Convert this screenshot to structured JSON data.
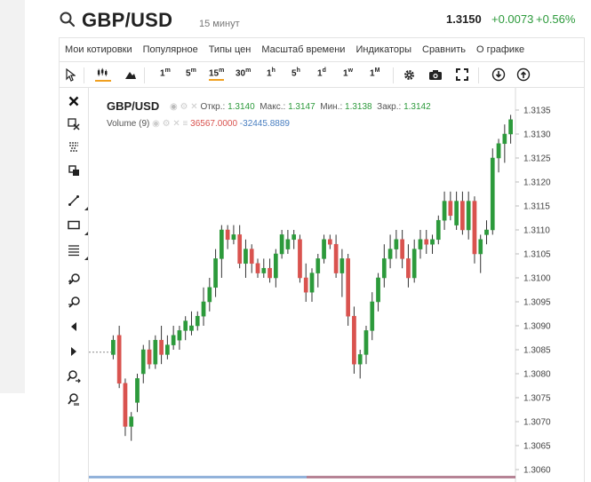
{
  "header": {
    "pair": "GBP/USD",
    "timeframe": "15 минут",
    "price": "1.3150",
    "change": "+0.0073",
    "change_pct": "+0.56%"
  },
  "menu": {
    "items": [
      "Мои котировки",
      "Популярное",
      "Типы цен",
      "Масштаб времени",
      "Индикаторы",
      "Сравнить",
      "О графике"
    ]
  },
  "toolbar": {
    "intervals": [
      {
        "num": "1",
        "unit": "m"
      },
      {
        "num": "5",
        "unit": "m"
      },
      {
        "num": "15",
        "unit": "m",
        "active": true
      },
      {
        "num": "30",
        "unit": "m"
      },
      {
        "num": "1",
        "unit": "h"
      },
      {
        "num": "5",
        "unit": "h"
      },
      {
        "num": "1",
        "unit": "d"
      },
      {
        "num": "1",
        "unit": "w"
      },
      {
        "num": "1",
        "unit": "M"
      }
    ],
    "icons": [
      "cursor-icon",
      "candlestick-chart-icon",
      "mountain-chart-icon",
      "gear-icon",
      "camera-icon",
      "fullscreen-icon",
      "download-icon",
      "upload-icon"
    ]
  },
  "sidebar": {
    "icons": [
      "close-icon",
      "remove-drawings-icon",
      "magnet-icon",
      "clone-icon",
      "trend-line-icon",
      "rectangle-icon",
      "fibonacci-icon",
      "zoom-in-icon",
      "zoom-out-icon",
      "scroll-left-icon",
      "scroll-right-icon",
      "zoom-fit-icon",
      "zoom-reset-icon"
    ]
  },
  "legend": {
    "pair": "GBP/USD",
    "open_label": "Откр.:",
    "open": "1.3140",
    "high_label": "Макс.:",
    "high": "1.3147",
    "low_label": "Мин.:",
    "low": "1.3138",
    "close_label": "Закр.:",
    "close": "1.3142",
    "volume_label": "Volume (9)",
    "volume_up": "36567.0000",
    "volume_down": "-32445.8889"
  },
  "colors": {
    "up": "#2c9a3b",
    "down": "#d9534f",
    "price_badge": "#2c9a3b",
    "volume": "#4a7fc1"
  },
  "chart_data": {
    "type": "candlestick",
    "y_ticks": [
      "1.3135",
      "1.3130",
      "1.3125",
      "1.3120",
      "1.3115",
      "1.3110",
      "1.3105",
      "1.3100",
      "1.3095",
      "1.3090",
      "1.3085",
      "1.3080",
      "1.3075",
      "1.3070",
      "1.3065",
      "1.3060"
    ],
    "ylim": [
      1.3058,
      1.3138
    ],
    "last_price": "1.3150",
    "candles": [
      [
        1.3084,
        1.3088,
        1.3083,
        1.3087
      ],
      [
        1.3088,
        1.309,
        1.3077,
        1.3078
      ],
      [
        1.3078,
        1.3079,
        1.3067,
        1.3069
      ],
      [
        1.3069,
        1.3072,
        1.3066,
        1.3071
      ],
      [
        1.3074,
        1.308,
        1.3072,
        1.3079
      ],
      [
        1.308,
        1.3086,
        1.3078,
        1.3085
      ],
      [
        1.3085,
        1.3087,
        1.3081,
        1.3082
      ],
      [
        1.3082,
        1.3088,
        1.3081,
        1.3087
      ],
      [
        1.3087,
        1.309,
        1.3082,
        1.3084
      ],
      [
        1.3084,
        1.3088,
        1.3083,
        1.3086
      ],
      [
        1.3086,
        1.309,
        1.3085,
        1.3088
      ],
      [
        1.3087,
        1.309,
        1.3085,
        1.3089
      ],
      [
        1.3089,
        1.3092,
        1.3087,
        1.3091
      ],
      [
        1.3089,
        1.3093,
        1.3088,
        1.309
      ],
      [
        1.309,
        1.3093,
        1.3089,
        1.3092
      ],
      [
        1.3092,
        1.3098,
        1.309,
        1.3095
      ],
      [
        1.3095,
        1.31,
        1.3093,
        1.3098
      ],
      [
        1.3098,
        1.3106,
        1.3096,
        1.3104
      ],
      [
        1.3104,
        1.3111,
        1.31,
        1.311
      ],
      [
        1.311,
        1.3111,
        1.3106,
        1.3108
      ],
      [
        1.3108,
        1.3111,
        1.3107,
        1.3109
      ],
      [
        1.3109,
        1.3111,
        1.3102,
        1.3103
      ],
      [
        1.3103,
        1.3108,
        1.31,
        1.3106
      ],
      [
        1.3106,
        1.3107,
        1.3101,
        1.3103
      ],
      [
        1.3103,
        1.3104,
        1.31,
        1.3101
      ],
      [
        1.3101,
        1.3104,
        1.31,
        1.3102
      ],
      [
        1.3102,
        1.3104,
        1.3099,
        1.31
      ],
      [
        1.31,
        1.3106,
        1.3098,
        1.3105
      ],
      [
        1.3105,
        1.311,
        1.3104,
        1.3109
      ],
      [
        1.3106,
        1.311,
        1.3105,
        1.3108
      ],
      [
        1.3108,
        1.311,
        1.3106,
        1.3109
      ],
      [
        1.3108,
        1.3109,
        1.3099,
        1.31
      ],
      [
        1.31,
        1.3103,
        1.3095,
        1.3097
      ],
      [
        1.3097,
        1.3102,
        1.3095,
        1.3101
      ],
      [
        1.3101,
        1.3105,
        1.3098,
        1.3104
      ],
      [
        1.3104,
        1.3109,
        1.3103,
        1.3108
      ],
      [
        1.3108,
        1.3109,
        1.3106,
        1.3107
      ],
      [
        1.3107,
        1.3109,
        1.31,
        1.3101
      ],
      [
        1.3101,
        1.3106,
        1.3096,
        1.3104
      ],
      [
        1.3104,
        1.3105,
        1.309,
        1.3092
      ],
      [
        1.3092,
        1.3094,
        1.308,
        1.3082
      ],
      [
        1.3082,
        1.3085,
        1.3079,
        1.3084
      ],
      [
        1.3084,
        1.309,
        1.3082,
        1.3089
      ],
      [
        1.3089,
        1.3097,
        1.3087,
        1.3095
      ],
      [
        1.3095,
        1.3101,
        1.3093,
        1.31
      ],
      [
        1.31,
        1.3107,
        1.3098,
        1.3104
      ],
      [
        1.3104,
        1.3109,
        1.3102,
        1.3106
      ],
      [
        1.3106,
        1.311,
        1.3104,
        1.3108
      ],
      [
        1.3108,
        1.311,
        1.3102,
        1.3104
      ],
      [
        1.3104,
        1.3107,
        1.3098,
        1.31
      ],
      [
        1.31,
        1.3108,
        1.3099,
        1.3106
      ],
      [
        1.3106,
        1.311,
        1.3104,
        1.3108
      ],
      [
        1.3108,
        1.311,
        1.3105,
        1.3107
      ],
      [
        1.3107,
        1.3109,
        1.3105,
        1.3108
      ],
      [
        1.3108,
        1.3113,
        1.3107,
        1.3112
      ],
      [
        1.3112,
        1.3118,
        1.311,
        1.3116
      ],
      [
        1.3116,
        1.3118,
        1.3112,
        1.3113
      ],
      [
        1.3111,
        1.3118,
        1.311,
        1.3116
      ],
      [
        1.3116,
        1.3118,
        1.3109,
        1.311
      ],
      [
        1.311,
        1.3118,
        1.3108,
        1.3116
      ],
      [
        1.3116,
        1.3117,
        1.3103,
        1.3105
      ],
      [
        1.3105,
        1.3109,
        1.3101,
        1.3108
      ],
      [
        1.3109,
        1.3112,
        1.3107,
        1.311
      ],
      [
        1.311,
        1.3127,
        1.3109,
        1.3125
      ],
      [
        1.3125,
        1.3129,
        1.3122,
        1.3128
      ],
      [
        1.3128,
        1.3132,
        1.3124,
        1.313
      ],
      [
        1.313,
        1.3134,
        1.3128,
        1.3133
      ]
    ]
  }
}
